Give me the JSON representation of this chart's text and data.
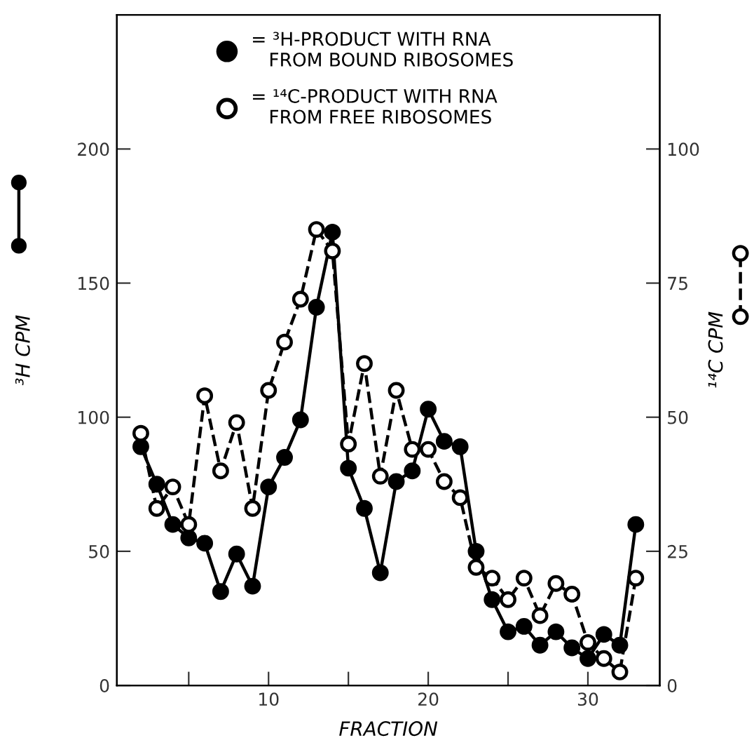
{
  "chart_data": {
    "type": "line",
    "xlabel": "FRACTION",
    "ylabel": "³H CPM",
    "y2label": "¹⁴C CPM",
    "x": [
      2,
      3,
      4,
      5,
      6,
      7,
      8,
      9,
      10,
      11,
      12,
      13,
      14,
      15,
      16,
      17,
      18,
      19,
      20,
      21,
      22,
      23,
      24,
      25,
      26,
      27,
      28,
      29,
      30,
      31,
      32,
      33
    ],
    "series": [
      {
        "name": "= ³H-PRODUCT WITH RNA\n   FROM BOUND RIBOSOMES",
        "color": "#000000",
        "marker": "circle",
        "line_style": "solid",
        "values": [
          89,
          75,
          60,
          55,
          53,
          35,
          49,
          37,
          74,
          85,
          99,
          141,
          169,
          81,
          66,
          42,
          76,
          80,
          103,
          91,
          89,
          50,
          32,
          20,
          22,
          15,
          20,
          14,
          10,
          19,
          15,
          60
        ]
      },
      {
        "name": "= ¹⁴C-PRODUCT WITH RNA\n   FROM FREE RIBOSOMES",
        "color": "#000000",
        "marker": "open circle",
        "line_style": "dashed",
        "axis": "y2",
        "values": [
          47,
          33,
          37,
          30,
          54,
          40,
          49,
          33,
          55,
          64,
          72,
          85,
          81,
          45,
          60,
          39,
          55,
          44,
          44,
          38,
          35,
          22,
          20,
          16,
          20,
          13,
          19,
          17,
          8,
          5,
          2.5,
          20
        ]
      }
    ],
    "xlim": [
      0.5,
      34.5
    ],
    "xticks": [
      {
        "value": 5,
        "label": null
      },
      10,
      {
        "value": 15,
        "label": null
      },
      20,
      {
        "value": 25,
        "label": null
      },
      30
    ],
    "ylim": [
      0,
      250
    ],
    "yticks": [
      0,
      50,
      100,
      150,
      200
    ],
    "y2lim": [
      0,
      125
    ],
    "y2ticks": [
      0,
      25,
      50,
      75,
      100
    ],
    "legend": "top",
    "grid": false
  }
}
